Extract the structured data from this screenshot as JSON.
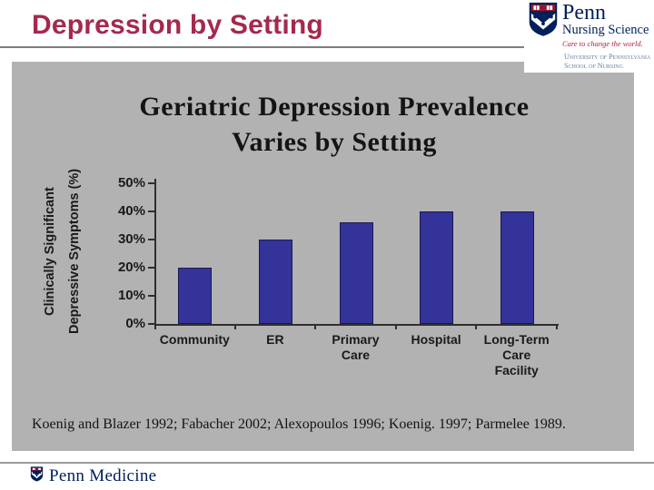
{
  "slide": {
    "title": "Depression by Setting",
    "citation": "Koenig and Blazer 1992; Fabacher 2002; Alexopoulos 1996; Koenig. 1997; Parmelee 1989."
  },
  "header_logo": {
    "line1": "Penn",
    "line2": "Nursing Science",
    "tagline": "Care to change the world.",
    "sub1": "University of Pennsylvania",
    "sub2": "School of Nursing"
  },
  "footer_logo": {
    "label": "Penn Medicine"
  },
  "chart_data": {
    "type": "bar",
    "title": "Geriatric Depression Prevalence Varies by Setting",
    "title_lines": [
      "Geriatric Depression Prevalence",
      "Varies by Setting"
    ],
    "ylabel": "Clinically Significant Depressive Symptoms (%)",
    "ylabel_lines": [
      "Clinically Significant",
      "Depressive Symptoms (%)"
    ],
    "categories": [
      "Community",
      "ER",
      "Primary Care",
      "Hospital",
      "Long-Term Care Facility"
    ],
    "category_label_lines": [
      [
        "Community"
      ],
      [
        "ER"
      ],
      [
        "Primary",
        "Care"
      ],
      [
        "Hospital"
      ],
      [
        "Long-Term",
        "Care",
        "Facility"
      ]
    ],
    "values": [
      20,
      30,
      36,
      40,
      40
    ],
    "unit": "%",
    "ylim": [
      0,
      50
    ],
    "ytick_step": 10,
    "ytick_labels": [
      "0%",
      "10%",
      "20%",
      "30%",
      "40%",
      "50%"
    ],
    "grid": false,
    "legend": false,
    "bar_color": "#333399",
    "bar_border_color": "#1A1A52",
    "plot_background": "#B2B2B2"
  },
  "colors": {
    "title_red": "#A5294C",
    "penn_navy": "#011F5B",
    "tagline_red": "#B01E3E",
    "panel_gray": "#B2B2B2",
    "rule_gray": "#7F7F7F"
  }
}
